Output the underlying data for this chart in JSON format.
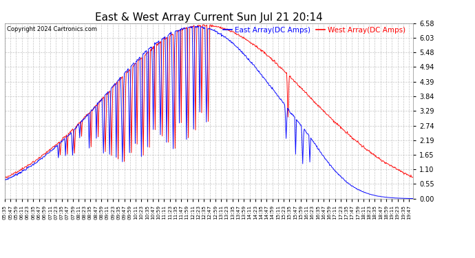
{
  "title": "East & West Array Current Sun Jul 21 20:14",
  "copyright": "Copyright 2024 Cartronics.com",
  "legend_east": "East Array(DC Amps)",
  "legend_west": "West Array(DC Amps)",
  "east_color": "#0000ff",
  "west_color": "#ff0000",
  "bg_color": "#ffffff",
  "grid_color": "#aaaaaa",
  "ylim": [
    0.0,
    6.58
  ],
  "yticks": [
    0.0,
    0.55,
    1.1,
    1.65,
    2.19,
    2.74,
    3.29,
    3.84,
    4.39,
    4.94,
    5.48,
    6.03,
    6.58
  ],
  "title_fontsize": 11,
  "tick_interval_minutes": 12
}
